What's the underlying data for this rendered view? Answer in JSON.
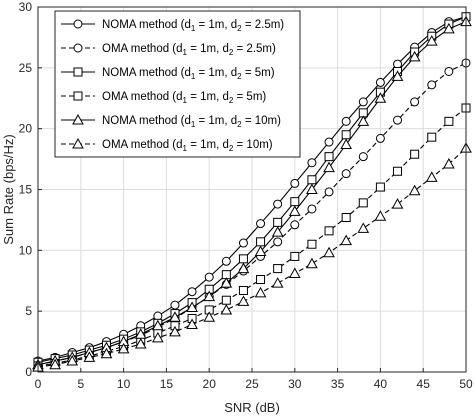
{
  "chart_data": {
    "type": "line",
    "xlabel": "SNR (dB)",
    "ylabel": "Sum Rate (bps/Hz)",
    "xlim": [
      0,
      50
    ],
    "ylim": [
      0,
      30
    ],
    "xticks": [
      0,
      5,
      10,
      15,
      20,
      25,
      30,
      35,
      40,
      45,
      50
    ],
    "yticks": [
      0,
      5,
      10,
      15,
      20,
      25,
      30
    ],
    "grid": true,
    "legend_position": "top-left",
    "x": [
      0,
      2,
      4,
      6,
      8,
      10,
      12,
      14,
      16,
      18,
      20,
      22,
      24,
      26,
      28,
      30,
      32,
      34,
      36,
      38,
      40,
      42,
      44,
      46,
      48,
      50
    ],
    "series": [
      {
        "name_parts": [
          "NOMA method (d",
          "1",
          " = 1m, d",
          "2",
          " = 2.5m)"
        ],
        "marker": "circle",
        "dash": "solid",
        "color": "#000000",
        "values": [
          0.9,
          1.2,
          1.6,
          2.0,
          2.5,
          3.1,
          3.8,
          4.6,
          5.5,
          6.6,
          7.8,
          9.1,
          10.6,
          12.2,
          13.8,
          15.5,
          17.2,
          18.9,
          20.6,
          22.2,
          23.8,
          25.3,
          26.7,
          27.9,
          28.8,
          29.2
        ]
      },
      {
        "name_parts": [
          "OMA method (d",
          "1",
          " = 1m, d",
          "2",
          " = 2.5m)"
        ],
        "marker": "circle",
        "dash": "dashed",
        "color": "#000000",
        "values": [
          0.6,
          0.9,
          1.2,
          1.6,
          2.0,
          2.5,
          3.0,
          3.7,
          4.4,
          5.3,
          6.2,
          7.2,
          8.3,
          9.5,
          10.7,
          12.1,
          13.4,
          14.8,
          16.3,
          17.7,
          19.2,
          20.7,
          22.2,
          23.6,
          24.7,
          25.4
        ]
      },
      {
        "name_parts": [
          "NOMA method (d",
          "1",
          " = 1m, d",
          "2",
          " = 5m)"
        ],
        "marker": "square",
        "dash": "solid",
        "color": "#000000",
        "values": [
          0.8,
          1.1,
          1.4,
          1.8,
          2.2,
          2.7,
          3.3,
          4.0,
          4.8,
          5.7,
          6.8,
          8.0,
          9.3,
          10.7,
          12.3,
          14.0,
          15.8,
          17.7,
          19.5,
          21.3,
          23.0,
          24.7,
          26.3,
          27.6,
          28.6,
          29.2
        ]
      },
      {
        "name_parts": [
          "OMA method (d",
          "1",
          " = 1m, d",
          "2",
          " = 5m)"
        ],
        "marker": "square",
        "dash": "dashed",
        "color": "#000000",
        "values": [
          0.5,
          0.7,
          1.0,
          1.3,
          1.7,
          2.1,
          2.6,
          3.2,
          3.8,
          4.4,
          5.1,
          5.9,
          6.7,
          7.6,
          8.5,
          9.5,
          10.5,
          11.6,
          12.7,
          13.9,
          15.2,
          16.5,
          17.9,
          19.3,
          20.6,
          21.7
        ]
      },
      {
        "name_parts": [
          "NOMA method (d",
          "1",
          " = 1m, d",
          "2",
          " = 10m)"
        ],
        "marker": "triangle",
        "dash": "solid",
        "color": "#000000",
        "values": [
          0.6,
          0.9,
          1.2,
          1.6,
          2.0,
          2.5,
          3.1,
          3.8,
          4.5,
          5.3,
          6.2,
          7.3,
          8.5,
          9.9,
          11.5,
          13.2,
          15.0,
          16.8,
          18.7,
          20.6,
          22.5,
          24.3,
          25.9,
          27.2,
          28.2,
          28.8
        ]
      },
      {
        "name_parts": [
          "OMA method (d",
          "1",
          " = 1m, d",
          "2",
          " = 10m)"
        ],
        "marker": "triangle",
        "dash": "dashed",
        "color": "#000000",
        "values": [
          0.4,
          0.6,
          0.9,
          1.2,
          1.5,
          1.9,
          2.3,
          2.8,
          3.3,
          3.9,
          4.5,
          5.1,
          5.8,
          6.5,
          7.3,
          8.1,
          8.9,
          9.8,
          10.8,
          11.8,
          12.8,
          13.8,
          14.9,
          16.0,
          17.1,
          18.4
        ]
      }
    ]
  }
}
